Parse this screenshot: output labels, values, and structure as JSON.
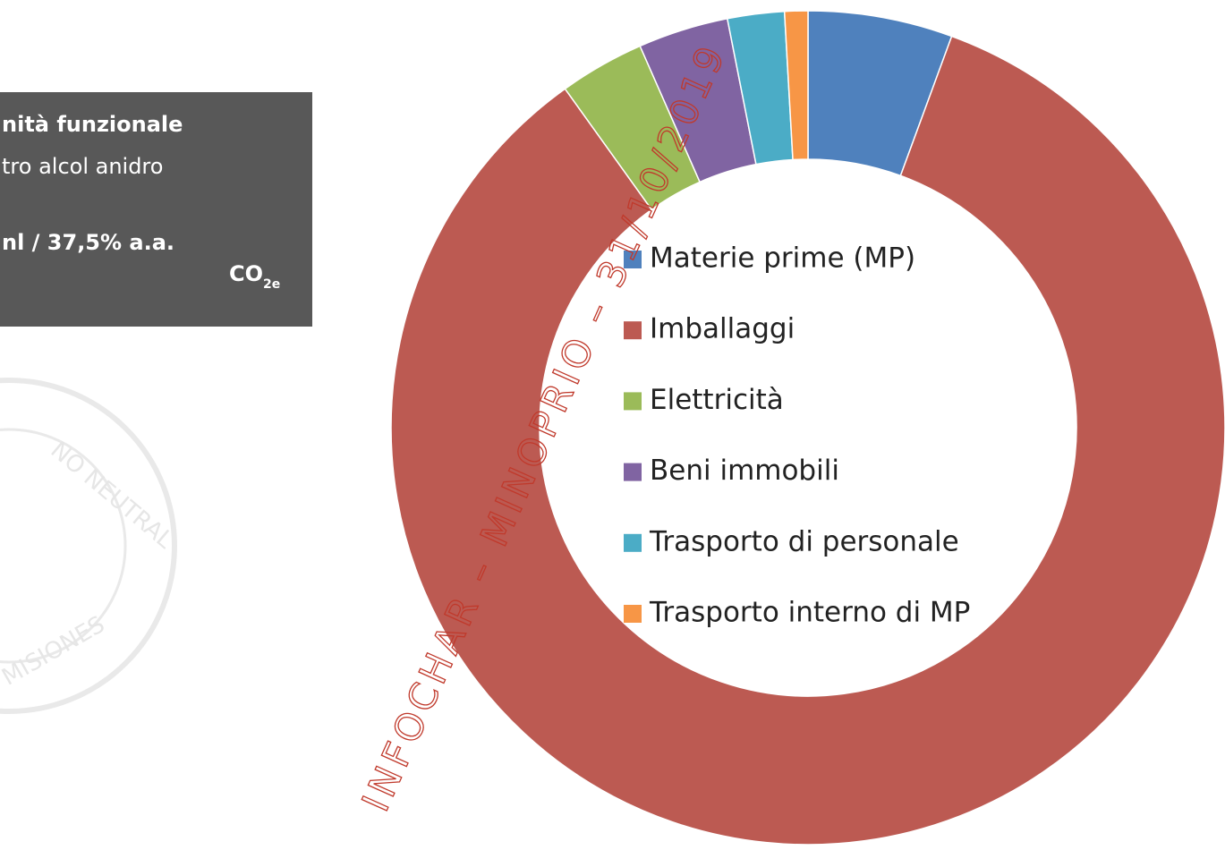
{
  "chart_data": {
    "type": "donut",
    "categories": [
      "Materie prime (MP)",
      "Imballaggi",
      "Elettricità",
      "Beni immobili",
      "Trasporto di personale",
      "Trasporto interno di MP"
    ],
    "values": [
      5.6,
      84.5,
      3.3,
      3.5,
      2.2,
      0.9
    ],
    "colors": [
      "#4f81bd",
      "#bc5a52",
      "#9bbb59",
      "#8064a2",
      "#4bacc6",
      "#f79646"
    ],
    "legend": "center"
  },
  "info_box": {
    "lines": [
      "nità funzionale",
      "tro alcol anidro",
      "nl / 37,5% a.a."
    ],
    "unit": "CO",
    "unit_sub": "2e"
  },
  "seal": [
    "NO NEUTRAL",
    "MISIONES"
  ],
  "watermark": "INFOCHAR – MINOPRIO – 31/10/2019"
}
